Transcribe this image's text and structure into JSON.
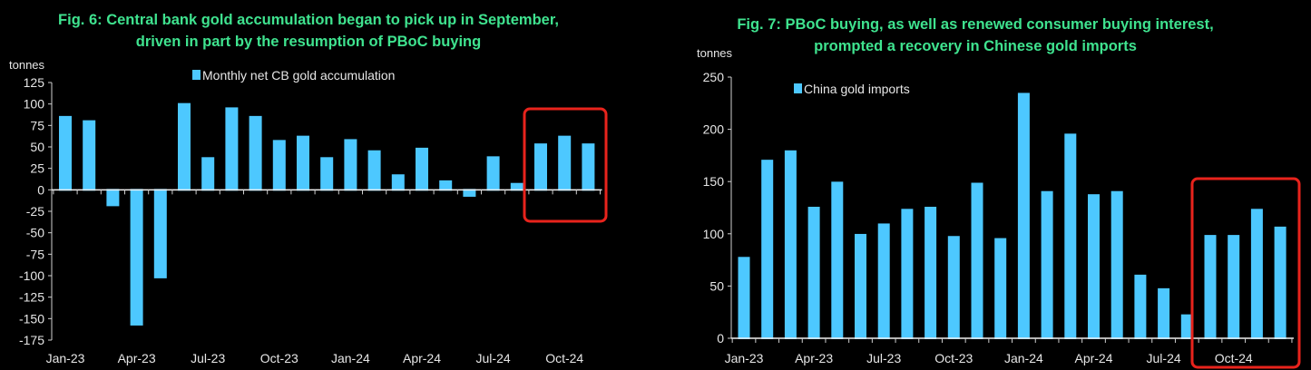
{
  "colors": {
    "bar": "#4dc8ff",
    "title": "#3fe38f",
    "highlight": "#e8231c",
    "axis": "#d0d0d0"
  },
  "chart_data": [
    {
      "type": "bar",
      "title_line1": "Fig. 6: Central bank gold accumulation began to pick up in September,",
      "title_line2": "driven in part by the resumption of PBoC buying",
      "ylabel": "tonnes",
      "legend": "Monthly net CB gold accumulation",
      "legend_position": "top-center",
      "ylim": [
        -175,
        125
      ],
      "yticks": [
        125,
        100,
        75,
        50,
        25,
        0,
        -25,
        -50,
        -75,
        -100,
        -125,
        -150,
        -175
      ],
      "categories": [
        "Jan-23",
        "Feb-23",
        "Mar-23",
        "Apr-23",
        "May-23",
        "Jun-23",
        "Jul-23",
        "Aug-23",
        "Sep-23",
        "Oct-23",
        "Nov-23",
        "Dec-23",
        "Jan-24",
        "Feb-24",
        "Mar-24",
        "Apr-24",
        "May-24",
        "Jun-24",
        "Jul-24",
        "Aug-24",
        "Sep-24",
        "Oct-24",
        "Nov-24"
      ],
      "values": [
        85,
        80,
        -18,
        -157,
        -102,
        100,
        37,
        95,
        85,
        57,
        62,
        37,
        58,
        45,
        17,
        48,
        10,
        -7,
        38,
        7,
        53,
        62,
        53
      ],
      "xtick_labels": [
        "Jan-23",
        "Apr-23",
        "Jul-23",
        "Oct-23",
        "Jan-24",
        "Apr-24",
        "Jul-24",
        "Oct-24"
      ],
      "highlight": [
        "Sep-24",
        "Nov-24"
      ]
    },
    {
      "type": "bar",
      "title_line1": "Fig. 7: PBoC buying,  as well as renewed consumer buying interest,",
      "title_line2": "prompted a recovery in Chinese gold imports",
      "ylabel": "tonnes",
      "legend": "China gold imports",
      "legend_position": "top-left",
      "ylim": [
        0,
        250
      ],
      "yticks": [
        250,
        200,
        150,
        100,
        50,
        0
      ],
      "categories": [
        "Jan-23",
        "Feb-23",
        "Mar-23",
        "Apr-23",
        "May-23",
        "Jun-23",
        "Jul-23",
        "Aug-23",
        "Sep-23",
        "Oct-23",
        "Nov-23",
        "Dec-23",
        "Jan-24",
        "Feb-24",
        "Mar-24",
        "Apr-24",
        "May-24",
        "Jun-24",
        "Jul-24",
        "Aug-24",
        "Sep-24",
        "Oct-24",
        "Nov-24",
        "Dec-24"
      ],
      "values": [
        77,
        170,
        179,
        125,
        149,
        99,
        109,
        123,
        125,
        97,
        148,
        95,
        234,
        140,
        195,
        137,
        140,
        60,
        47,
        22,
        98,
        98,
        123,
        106
      ],
      "xtick_labels": [
        "Jan-23",
        "Apr-23",
        "Jul-23",
        "Oct-23",
        "Jan-24",
        "Apr-24",
        "Jul-24",
        "Oct-24"
      ],
      "highlight": [
        "Sep-24",
        "Dec-24"
      ]
    }
  ]
}
